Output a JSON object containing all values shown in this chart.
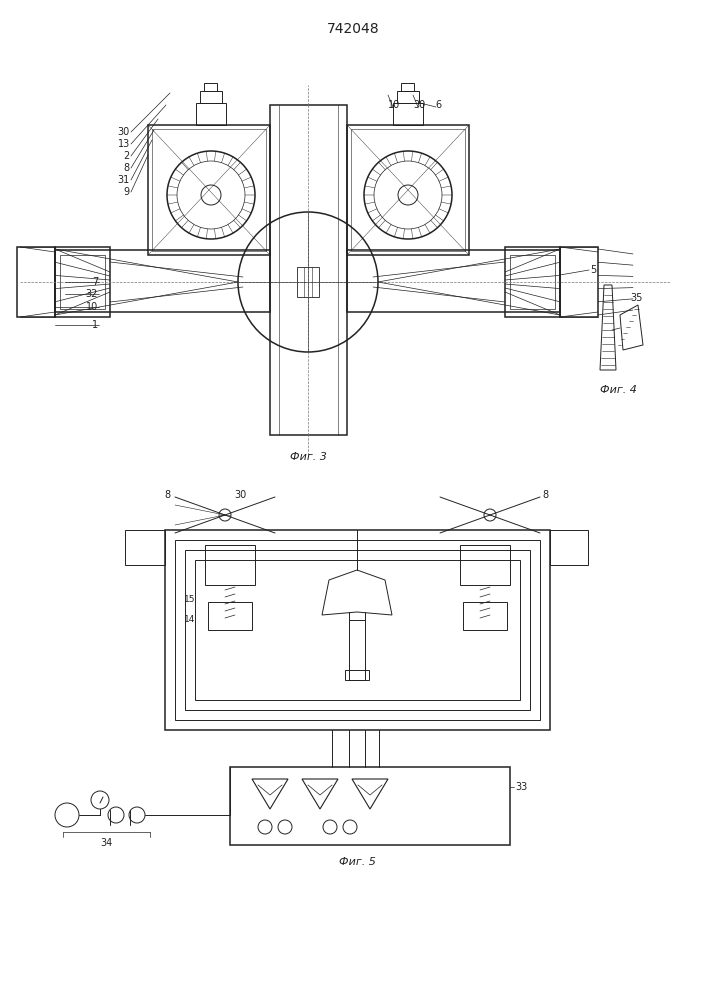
{
  "title": "742048",
  "title_fontsize": 10,
  "fig3_label": "Фиг. 3",
  "fig4_label": "Фиг. 4",
  "fig5_label": "Фиг. 5",
  "bg_color": "#ffffff",
  "line_color": "#222222",
  "lw": 0.7,
  "lw2": 1.1,
  "fs": 7.0
}
